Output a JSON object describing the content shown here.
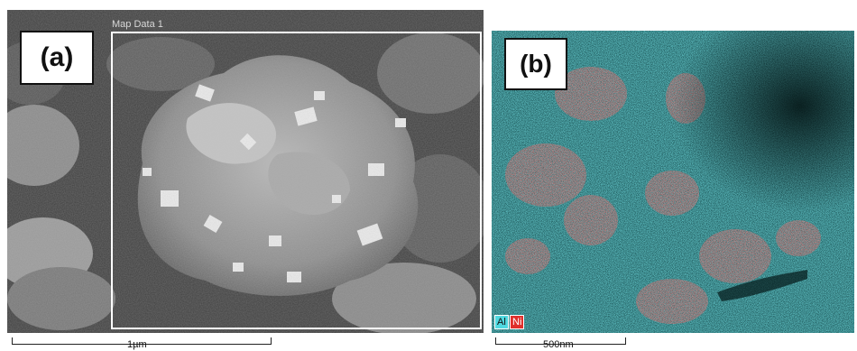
{
  "panel_a": {
    "label": "(a)",
    "map_title": "Map Data 1",
    "scale_label": "1µm"
  },
  "panel_b": {
    "label": "(b)",
    "legend": [
      {
        "element": "Al",
        "color": "#4fd9e0"
      },
      {
        "element": "Ni",
        "color": "#e0302c"
      }
    ],
    "scale_label": "500nm"
  }
}
